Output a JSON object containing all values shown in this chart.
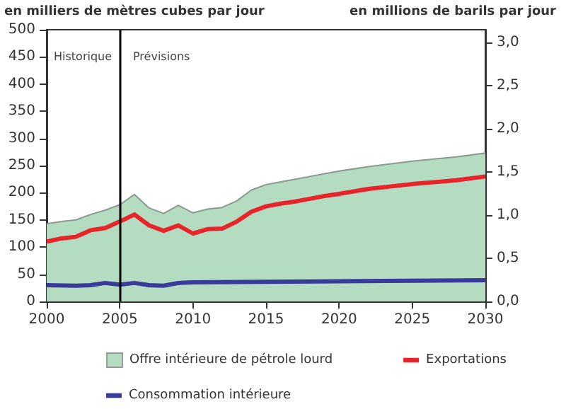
{
  "chart_data": {
    "type": "line",
    "ylabel": "en milliers de mètres cubes par jour",
    "y2label": "en millions de barils par jour",
    "xlim": [
      2000,
      2030
    ],
    "xticks": [
      2000,
      2005,
      2010,
      2015,
      2020,
      2025,
      2030
    ],
    "ylim": [
      0,
      500
    ],
    "yticks": [
      0,
      50,
      100,
      150,
      200,
      250,
      300,
      350,
      400,
      450,
      500
    ],
    "y2lim": [
      0,
      3.145
    ],
    "y2ticks": [
      {
        "value": 0,
        "label": "0,0"
      },
      {
        "value": 0.5,
        "label": "0,5"
      },
      {
        "value": 1,
        "label": "1,0"
      },
      {
        "value": 1.5,
        "label": "1,5"
      },
      {
        "value": 2,
        "label": "2,0"
      },
      {
        "value": 2.5,
        "label": "2,5"
      },
      {
        "value": 3,
        "label": "3,0"
      }
    ],
    "grid": false,
    "legend": "bottom",
    "marker": "none",
    "line_style": "solid",
    "annotations": [
      "Historique",
      "Prévisions"
    ],
    "ref_lines": [
      {
        "axis": "x",
        "value": 2005,
        "color": "#000000",
        "line_style": "solid"
      }
    ],
    "series": [
      {
        "name": "Offre intérieure de pétrole lourd",
        "type": "area",
        "color": "#b3dcc0",
        "x": [
          2000,
          2001,
          2002,
          2003,
          2004,
          2005,
          2006,
          2007,
          2008,
          2009,
          2010,
          2011,
          2012,
          2013,
          2014,
          2015,
          2016,
          2017,
          2018,
          2019,
          2020,
          2022,
          2025,
          2028,
          2030
        ],
        "values": [
          143,
          147,
          150,
          160,
          168,
          178,
          197,
          172,
          162,
          177,
          163,
          170,
          173,
          185,
          205,
          215,
          220,
          225,
          230,
          235,
          240,
          248,
          258,
          266,
          273
        ]
      },
      {
        "name": "Exportations",
        "type": "line",
        "color": "#e8232a",
        "x": [
          2000,
          2001,
          2002,
          2003,
          2004,
          2005,
          2006,
          2007,
          2008,
          2009,
          2010,
          2011,
          2012,
          2013,
          2014,
          2015,
          2016,
          2017,
          2018,
          2019,
          2020,
          2022,
          2025,
          2028,
          2030
        ],
        "values": [
          110,
          116,
          119,
          131,
          135,
          147,
          160,
          140,
          130,
          140,
          125,
          133,
          134,
          147,
          165,
          175,
          180,
          184,
          189,
          194,
          198,
          207,
          216,
          223,
          230
        ]
      },
      {
        "name": "Consommation intérieure",
        "type": "line",
        "color": "#3a3a9a",
        "x": [
          2000,
          2002,
          2003,
          2004,
          2005,
          2006,
          2007,
          2008,
          2009,
          2010,
          2015,
          2020,
          2025,
          2030
        ],
        "values": [
          30,
          29,
          30,
          34,
          31,
          34,
          30,
          29,
          34,
          35,
          36,
          37,
          38,
          39
        ]
      }
    ]
  }
}
